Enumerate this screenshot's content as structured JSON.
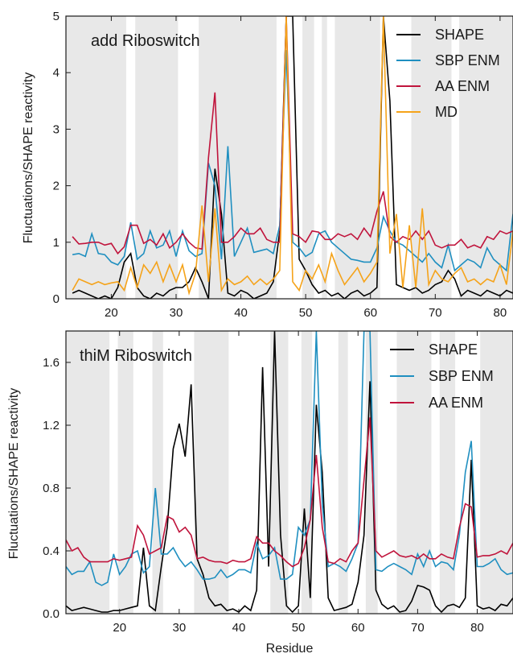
{
  "xlabel": "Residue",
  "ylabel": "Fluctuations/SHAPE reactivity",
  "colors": {
    "shape": "#000000",
    "sbp": "#1f8fc0",
    "aa": "#c0143c",
    "md": "#f5a31a",
    "band": "#e8e8e8"
  },
  "chart_data": [
    {
      "type": "line",
      "title": "add Riboswitch",
      "xlim": [
        13,
        82
      ],
      "ylim": [
        0,
        5
      ],
      "xticks": [
        20,
        30,
        40,
        50,
        60,
        70,
        80
      ],
      "yticks": [
        0,
        1,
        2,
        3,
        4,
        5
      ],
      "ytick_labels": [
        "0",
        "1",
        "2",
        "3",
        "4",
        "5"
      ],
      "shaded_regions": [
        [
          13,
          22.3
        ],
        [
          23.7,
          30.3
        ],
        [
          33.5,
          45.5
        ],
        [
          49.5,
          51.3
        ],
        [
          52.5,
          53.3
        ],
        [
          54.5,
          61.5
        ],
        [
          66.3,
          72.5
        ],
        [
          73.7,
          82
        ]
      ],
      "legend": [
        "SHAPE",
        "SBP ENM",
        "AA ENM",
        "MD"
      ],
      "x": [
        14,
        15,
        16,
        17,
        18,
        19,
        20,
        21,
        22,
        23,
        24,
        25,
        26,
        27,
        28,
        29,
        30,
        31,
        32,
        33,
        34,
        35,
        36,
        37,
        38,
        39,
        40,
        41,
        42,
        43,
        44,
        45,
        46,
        47,
        48,
        49,
        50,
        51,
        52,
        53,
        54,
        55,
        56,
        57,
        58,
        59,
        60,
        61,
        62,
        63,
        64,
        65,
        66,
        67,
        68,
        69,
        70,
        71,
        72,
        73,
        74,
        75,
        76,
        77,
        78,
        79,
        80,
        81,
        82
      ],
      "series": [
        {
          "name": "SHAPE",
          "color_key": "shape",
          "values": [
            0.1,
            0.15,
            0.1,
            0.05,
            0.0,
            0.05,
            0.0,
            0.2,
            0.65,
            0.8,
            0.2,
            0.05,
            0.0,
            0.1,
            0.05,
            0.15,
            0.2,
            0.2,
            0.3,
            0.55,
            0.3,
            0.0,
            2.3,
            1.5,
            0.1,
            0.05,
            0.15,
            0.1,
            0.0,
            0.05,
            0.1,
            0.3,
            1.2,
            5.0,
            5.0,
            0.7,
            0.5,
            0.25,
            0.1,
            0.15,
            0.05,
            0.1,
            0.0,
            0.1,
            0.15,
            0.05,
            0.1,
            0.2,
            5.0,
            3.5,
            0.25,
            0.2,
            0.15,
            0.2,
            0.1,
            0.15,
            0.25,
            0.3,
            0.5,
            0.35,
            0.05,
            0.15,
            0.1,
            0.05,
            0.15,
            0.1,
            0.05,
            0.15,
            0.1
          ]
        },
        {
          "name": "SBP ENM",
          "color_key": "sbp",
          "values": [
            0.78,
            0.8,
            0.75,
            1.15,
            0.8,
            0.78,
            0.65,
            0.6,
            0.75,
            1.35,
            0.7,
            0.8,
            1.2,
            0.9,
            0.95,
            1.2,
            0.75,
            1.2,
            0.85,
            0.75,
            0.8,
            2.4,
            2.0,
            0.7,
            2.7,
            0.75,
            1.0,
            1.25,
            0.82,
            0.85,
            0.88,
            0.8,
            1.3,
            4.4,
            1.0,
            0.9,
            0.75,
            0.82,
            1.15,
            1.2,
            1.0,
            0.9,
            0.8,
            0.7,
            0.68,
            0.65,
            0.65,
            0.9,
            1.45,
            1.2,
            1.0,
            0.95,
            0.85,
            0.75,
            0.65,
            0.8,
            0.65,
            0.55,
            0.95,
            0.5,
            0.6,
            0.7,
            0.65,
            0.55,
            0.9,
            0.7,
            0.6,
            0.5,
            1.5
          ]
        },
        {
          "name": "AA ENM",
          "color_key": "aa",
          "values": [
            1.1,
            0.97,
            0.98,
            1.0,
            1.0,
            0.95,
            0.98,
            0.8,
            0.92,
            1.3,
            1.3,
            0.98,
            1.05,
            0.95,
            1.15,
            0.9,
            1.0,
            1.15,
            1.0,
            0.9,
            0.88,
            2.5,
            3.65,
            1.0,
            1.0,
            1.1,
            1.25,
            1.15,
            1.15,
            1.25,
            1.05,
            1.0,
            1.0,
            5.0,
            1.15,
            1.1,
            1.0,
            1.2,
            1.18,
            1.05,
            1.05,
            1.15,
            1.1,
            1.15,
            1.05,
            1.25,
            1.1,
            1.55,
            1.9,
            1.1,
            1.0,
            1.1,
            1.05,
            1.2,
            1.05,
            1.2,
            0.95,
            0.9,
            0.95,
            0.95,
            1.05,
            0.9,
            0.95,
            0.9,
            1.1,
            1.05,
            1.2,
            1.15,
            1.2
          ]
        },
        {
          "name": "MD",
          "color_key": "md",
          "values": [
            0.15,
            0.35,
            0.3,
            0.25,
            0.3,
            0.25,
            0.28,
            0.3,
            0.15,
            0.55,
            0.2,
            0.6,
            0.45,
            0.65,
            0.3,
            0.6,
            0.3,
            0.6,
            0.1,
            0.45,
            1.65,
            0.3,
            1.6,
            0.15,
            0.35,
            0.25,
            0.3,
            0.4,
            0.25,
            0.35,
            0.25,
            0.35,
            0.5,
            5.0,
            0.3,
            0.15,
            0.5,
            0.35,
            0.6,
            0.3,
            0.8,
            0.5,
            0.25,
            0.4,
            0.55,
            0.3,
            0.45,
            0.65,
            5.0,
            0.8,
            1.5,
            0.2,
            1.3,
            0.2,
            1.6,
            0.25,
            0.5,
            0.35,
            0.3,
            0.45,
            0.55,
            0.3,
            0.35,
            0.25,
            0.35,
            0.3,
            0.6,
            0.25,
            1.2
          ]
        }
      ]
    },
    {
      "type": "line",
      "title": "thiM Riboswitch",
      "xlim": [
        11,
        86
      ],
      "ylim": [
        0,
        1.8
      ],
      "xticks": [
        20,
        30,
        40,
        50,
        60,
        70,
        80
      ],
      "yticks": [
        0,
        0.4,
        0.8,
        1.2,
        1.6
      ],
      "ytick_labels": [
        "0.0",
        "0.4",
        "0.8",
        "1.2",
        "1.6"
      ],
      "shaded_regions": [
        [
          11,
          18.3
        ],
        [
          19.7,
          22.3
        ],
        [
          25.5,
          27.3
        ],
        [
          32.5,
          38.3
        ],
        [
          45.3,
          48.3
        ],
        [
          50.5,
          52.3
        ],
        [
          56.7,
          58.3
        ],
        [
          61.3,
          63.3
        ],
        [
          66.5,
          72.3
        ],
        [
          73.7,
          76.3
        ],
        [
          80.5,
          86
        ]
      ],
      "legend": [
        "SHAPE",
        "SBP ENM",
        "AA ENM"
      ],
      "x": [
        11,
        12,
        13,
        14,
        15,
        16,
        17,
        18,
        19,
        20,
        21,
        22,
        23,
        24,
        25,
        26,
        27,
        28,
        29,
        30,
        31,
        32,
        33,
        34,
        35,
        36,
        37,
        38,
        39,
        40,
        41,
        42,
        43,
        44,
        45,
        46,
        47,
        48,
        49,
        50,
        51,
        52,
        53,
        54,
        55,
        56,
        57,
        58,
        59,
        60,
        61,
        62,
        63,
        64,
        65,
        66,
        67,
        68,
        69,
        70,
        71,
        72,
        73,
        74,
        75,
        76,
        77,
        78,
        79,
        80,
        81,
        82,
        83,
        84,
        85,
        86
      ],
      "series": [
        {
          "name": "SHAPE",
          "color_key": "shape",
          "values": [
            0.05,
            0.02,
            0.03,
            0.04,
            0.03,
            0.02,
            0.01,
            0.01,
            0.02,
            0.02,
            0.03,
            0.04,
            0.05,
            0.42,
            0.05,
            0.02,
            0.3,
            0.55,
            1.05,
            1.21,
            1.0,
            1.46,
            0.35,
            0.25,
            0.1,
            0.05,
            0.06,
            0.02,
            0.03,
            0.01,
            0.05,
            0.02,
            0.15,
            1.57,
            0.3,
            1.8,
            0.5,
            0.05,
            0.01,
            0.05,
            0.67,
            0.1,
            1.33,
            0.9,
            0.1,
            0.02,
            0.03,
            0.04,
            0.06,
            0.2,
            0.5,
            1.48,
            0.15,
            0.06,
            0.03,
            0.05,
            0.01,
            0.02,
            0.08,
            0.18,
            0.17,
            0.15,
            0.05,
            0.01,
            0.05,
            0.06,
            0.04,
            0.1,
            0.98,
            0.05,
            0.03,
            0.04,
            0.02,
            0.06,
            0.05,
            0.1
          ]
        },
        {
          "name": "SBP ENM",
          "color_key": "sbp",
          "values": [
            0.3,
            0.25,
            0.27,
            0.27,
            0.33,
            0.2,
            0.18,
            0.2,
            0.38,
            0.25,
            0.3,
            0.38,
            0.4,
            0.26,
            0.3,
            0.8,
            0.38,
            0.38,
            0.42,
            0.35,
            0.3,
            0.33,
            0.28,
            0.22,
            0.22,
            0.23,
            0.28,
            0.23,
            0.25,
            0.28,
            0.28,
            0.26,
            0.45,
            0.35,
            0.37,
            0.42,
            0.22,
            0.22,
            0.25,
            0.55,
            0.5,
            0.6,
            1.8,
            0.7,
            0.3,
            0.32,
            0.3,
            0.27,
            0.35,
            0.45,
            1.8,
            1.8,
            0.28,
            0.27,
            0.3,
            0.32,
            0.3,
            0.28,
            0.25,
            0.38,
            0.3,
            0.4,
            0.3,
            0.33,
            0.32,
            0.28,
            0.5,
            0.9,
            1.1,
            0.3,
            0.3,
            0.32,
            0.35,
            0.28,
            0.25,
            0.26
          ]
        },
        {
          "name": "AA ENM",
          "color_key": "aa",
          "values": [
            0.47,
            0.4,
            0.42,
            0.36,
            0.33,
            0.33,
            0.33,
            0.33,
            0.35,
            0.34,
            0.35,
            0.36,
            0.56,
            0.5,
            0.38,
            0.4,
            0.42,
            0.62,
            0.6,
            0.52,
            0.55,
            0.5,
            0.35,
            0.36,
            0.34,
            0.33,
            0.33,
            0.32,
            0.34,
            0.33,
            0.33,
            0.35,
            0.49,
            0.45,
            0.45,
            0.4,
            0.37,
            0.33,
            0.3,
            0.32,
            0.42,
            0.6,
            1.01,
            0.55,
            0.33,
            0.32,
            0.35,
            0.33,
            0.4,
            0.45,
            0.85,
            1.25,
            0.4,
            0.36,
            0.38,
            0.4,
            0.37,
            0.36,
            0.37,
            0.35,
            0.38,
            0.35,
            0.35,
            0.38,
            0.36,
            0.35,
            0.55,
            0.7,
            0.68,
            0.36,
            0.37,
            0.37,
            0.38,
            0.4,
            0.38,
            0.45
          ]
        }
      ]
    }
  ]
}
